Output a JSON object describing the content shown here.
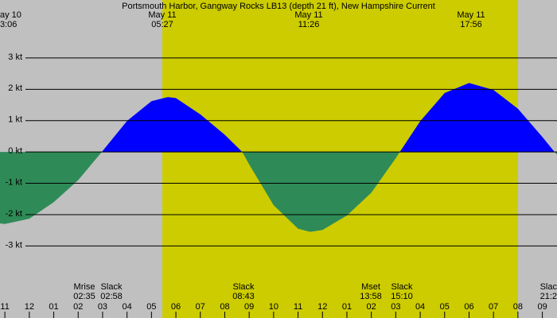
{
  "chart_data": {
    "type": "area",
    "title": "Portsmouth Harbor, Gangway Rocks LB13 (depth 21 ft), New Hampshire Current",
    "x": [
      "22:48",
      "23:00",
      "00:00",
      "01:00",
      "02:00",
      "02:58",
      "04:00",
      "05:00",
      "05:40",
      "06:00",
      "07:00",
      "08:00",
      "08:43",
      "09:00",
      "10:00",
      "11:00",
      "11:30",
      "12:00",
      "13:00",
      "14:00",
      "15:00",
      "15:10",
      "16:00",
      "17:00",
      "18:00",
      "19:00",
      "20:00",
      "21:00",
      "21:30",
      "21:36"
    ],
    "series": [
      {
        "flood_color": "#0000ff",
        "ebb_color": "#2e8b57",
        "values": [
          -2.28,
          -2.3,
          -2.13,
          -1.6,
          -0.9,
          0,
          0.99,
          1.62,
          1.75,
          1.72,
          1.2,
          0.55,
          0,
          -0.4,
          -1.7,
          -2.45,
          -2.55,
          -2.49,
          -2.03,
          -1.3,
          -0.2,
          0,
          0.98,
          1.88,
          2.2,
          1.98,
          1.38,
          0.48,
          0,
          -0.08
        ]
      }
    ],
    "xlim": [
      "22:48",
      "21:36"
    ],
    "xticks": [
      {
        "value": "23:00",
        "label": "11"
      },
      {
        "value": "00:00",
        "label": "12"
      },
      {
        "value": "01:00",
        "label": "01"
      },
      {
        "value": "02:00",
        "label": "02"
      },
      {
        "value": "03:00",
        "label": "03"
      },
      {
        "value": "04:00",
        "label": "04"
      },
      {
        "value": "05:00",
        "label": "05"
      },
      {
        "value": "06:00",
        "label": "06"
      },
      {
        "value": "07:00",
        "label": "07"
      },
      {
        "value": "08:00",
        "label": "08"
      },
      {
        "value": "09:00",
        "label": "09"
      },
      {
        "value": "10:00",
        "label": "10"
      },
      {
        "value": "11:00",
        "label": "11"
      },
      {
        "value": "12:00",
        "label": "12"
      },
      {
        "value": "13:00",
        "label": "01"
      },
      {
        "value": "14:00",
        "label": "02"
      },
      {
        "value": "15:00",
        "label": "03"
      },
      {
        "value": "16:00",
        "label": "04"
      },
      {
        "value": "17:00",
        "label": "05"
      },
      {
        "value": "18:00",
        "label": "06"
      },
      {
        "value": "19:00",
        "label": "07"
      },
      {
        "value": "20:00",
        "label": "08"
      },
      {
        "value": "21:00",
        "label": "09"
      }
    ],
    "ylim": [
      -5.3,
      4.85
    ],
    "yticks": [
      {
        "value": 3,
        "label": "3 kt"
      },
      {
        "value": 2,
        "label": "2 kt"
      },
      {
        "value": 1,
        "label": "1 kt"
      },
      {
        "value": 0,
        "label": "0 kt"
      },
      {
        "value": -1,
        "label": "-1 kt"
      },
      {
        "value": -2,
        "label": "-2 kt"
      },
      {
        "value": -3,
        "label": "-3 kt"
      }
    ],
    "grid": true,
    "top_labels": [
      {
        "date": "ay 10",
        "time": "3:06"
      },
      {
        "date": "May 11",
        "time": "05:27"
      },
      {
        "date": "May 11",
        "time": "11:26"
      },
      {
        "date": "May 11",
        "time": "17:56"
      }
    ],
    "events": [
      {
        "label": "Mrise",
        "time": "02:35"
      },
      {
        "label": "Slack",
        "time": "02:58"
      },
      {
        "label": "Slack",
        "time": "08:43"
      },
      {
        "label": "Mset",
        "time": "13:58"
      },
      {
        "label": "Slack",
        "time": "15:10"
      },
      {
        "label": "Slac",
        "time": "21:2"
      }
    ]
  }
}
